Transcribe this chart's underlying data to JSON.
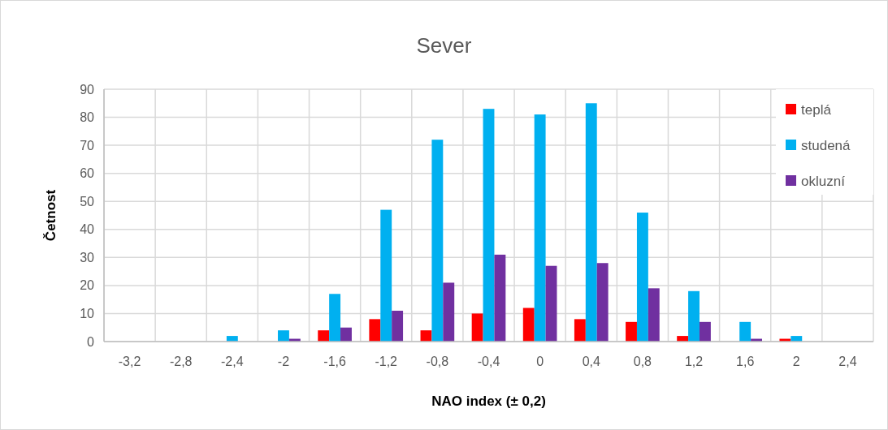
{
  "chart_data": {
    "type": "bar",
    "title": "Sever",
    "xlabel": "NAO index (± 0,2)",
    "ylabel": "Četnost",
    "categories": [
      "-3,2",
      "-2,8",
      "-2,4",
      "-2",
      "-1,6",
      "-1,2",
      "-0,8",
      "-0,4",
      "0",
      "0,4",
      "0,8",
      "1,2",
      "1,6",
      "2",
      "2,4"
    ],
    "series": [
      {
        "name": "teplá",
        "color": "#ff0000",
        "values": [
          0,
          0,
          0,
          0,
          4,
          8,
          4,
          10,
          12,
          8,
          7,
          2,
          0,
          1,
          0
        ]
      },
      {
        "name": "studená",
        "color": "#00b0f0",
        "values": [
          0,
          0,
          2,
          4,
          17,
          47,
          72,
          83,
          81,
          85,
          46,
          18,
          7,
          2,
          0
        ]
      },
      {
        "name": "okluzní",
        "color": "#7030a0",
        "values": [
          0,
          0,
          0,
          1,
          5,
          11,
          21,
          31,
          27,
          28,
          19,
          7,
          1,
          0,
          0
        ]
      }
    ],
    "ylim": [
      0,
      90
    ],
    "yticks": [
      0,
      10,
      20,
      30,
      40,
      50,
      60,
      70,
      80,
      90
    ],
    "grid": true,
    "legend": "top right"
  }
}
